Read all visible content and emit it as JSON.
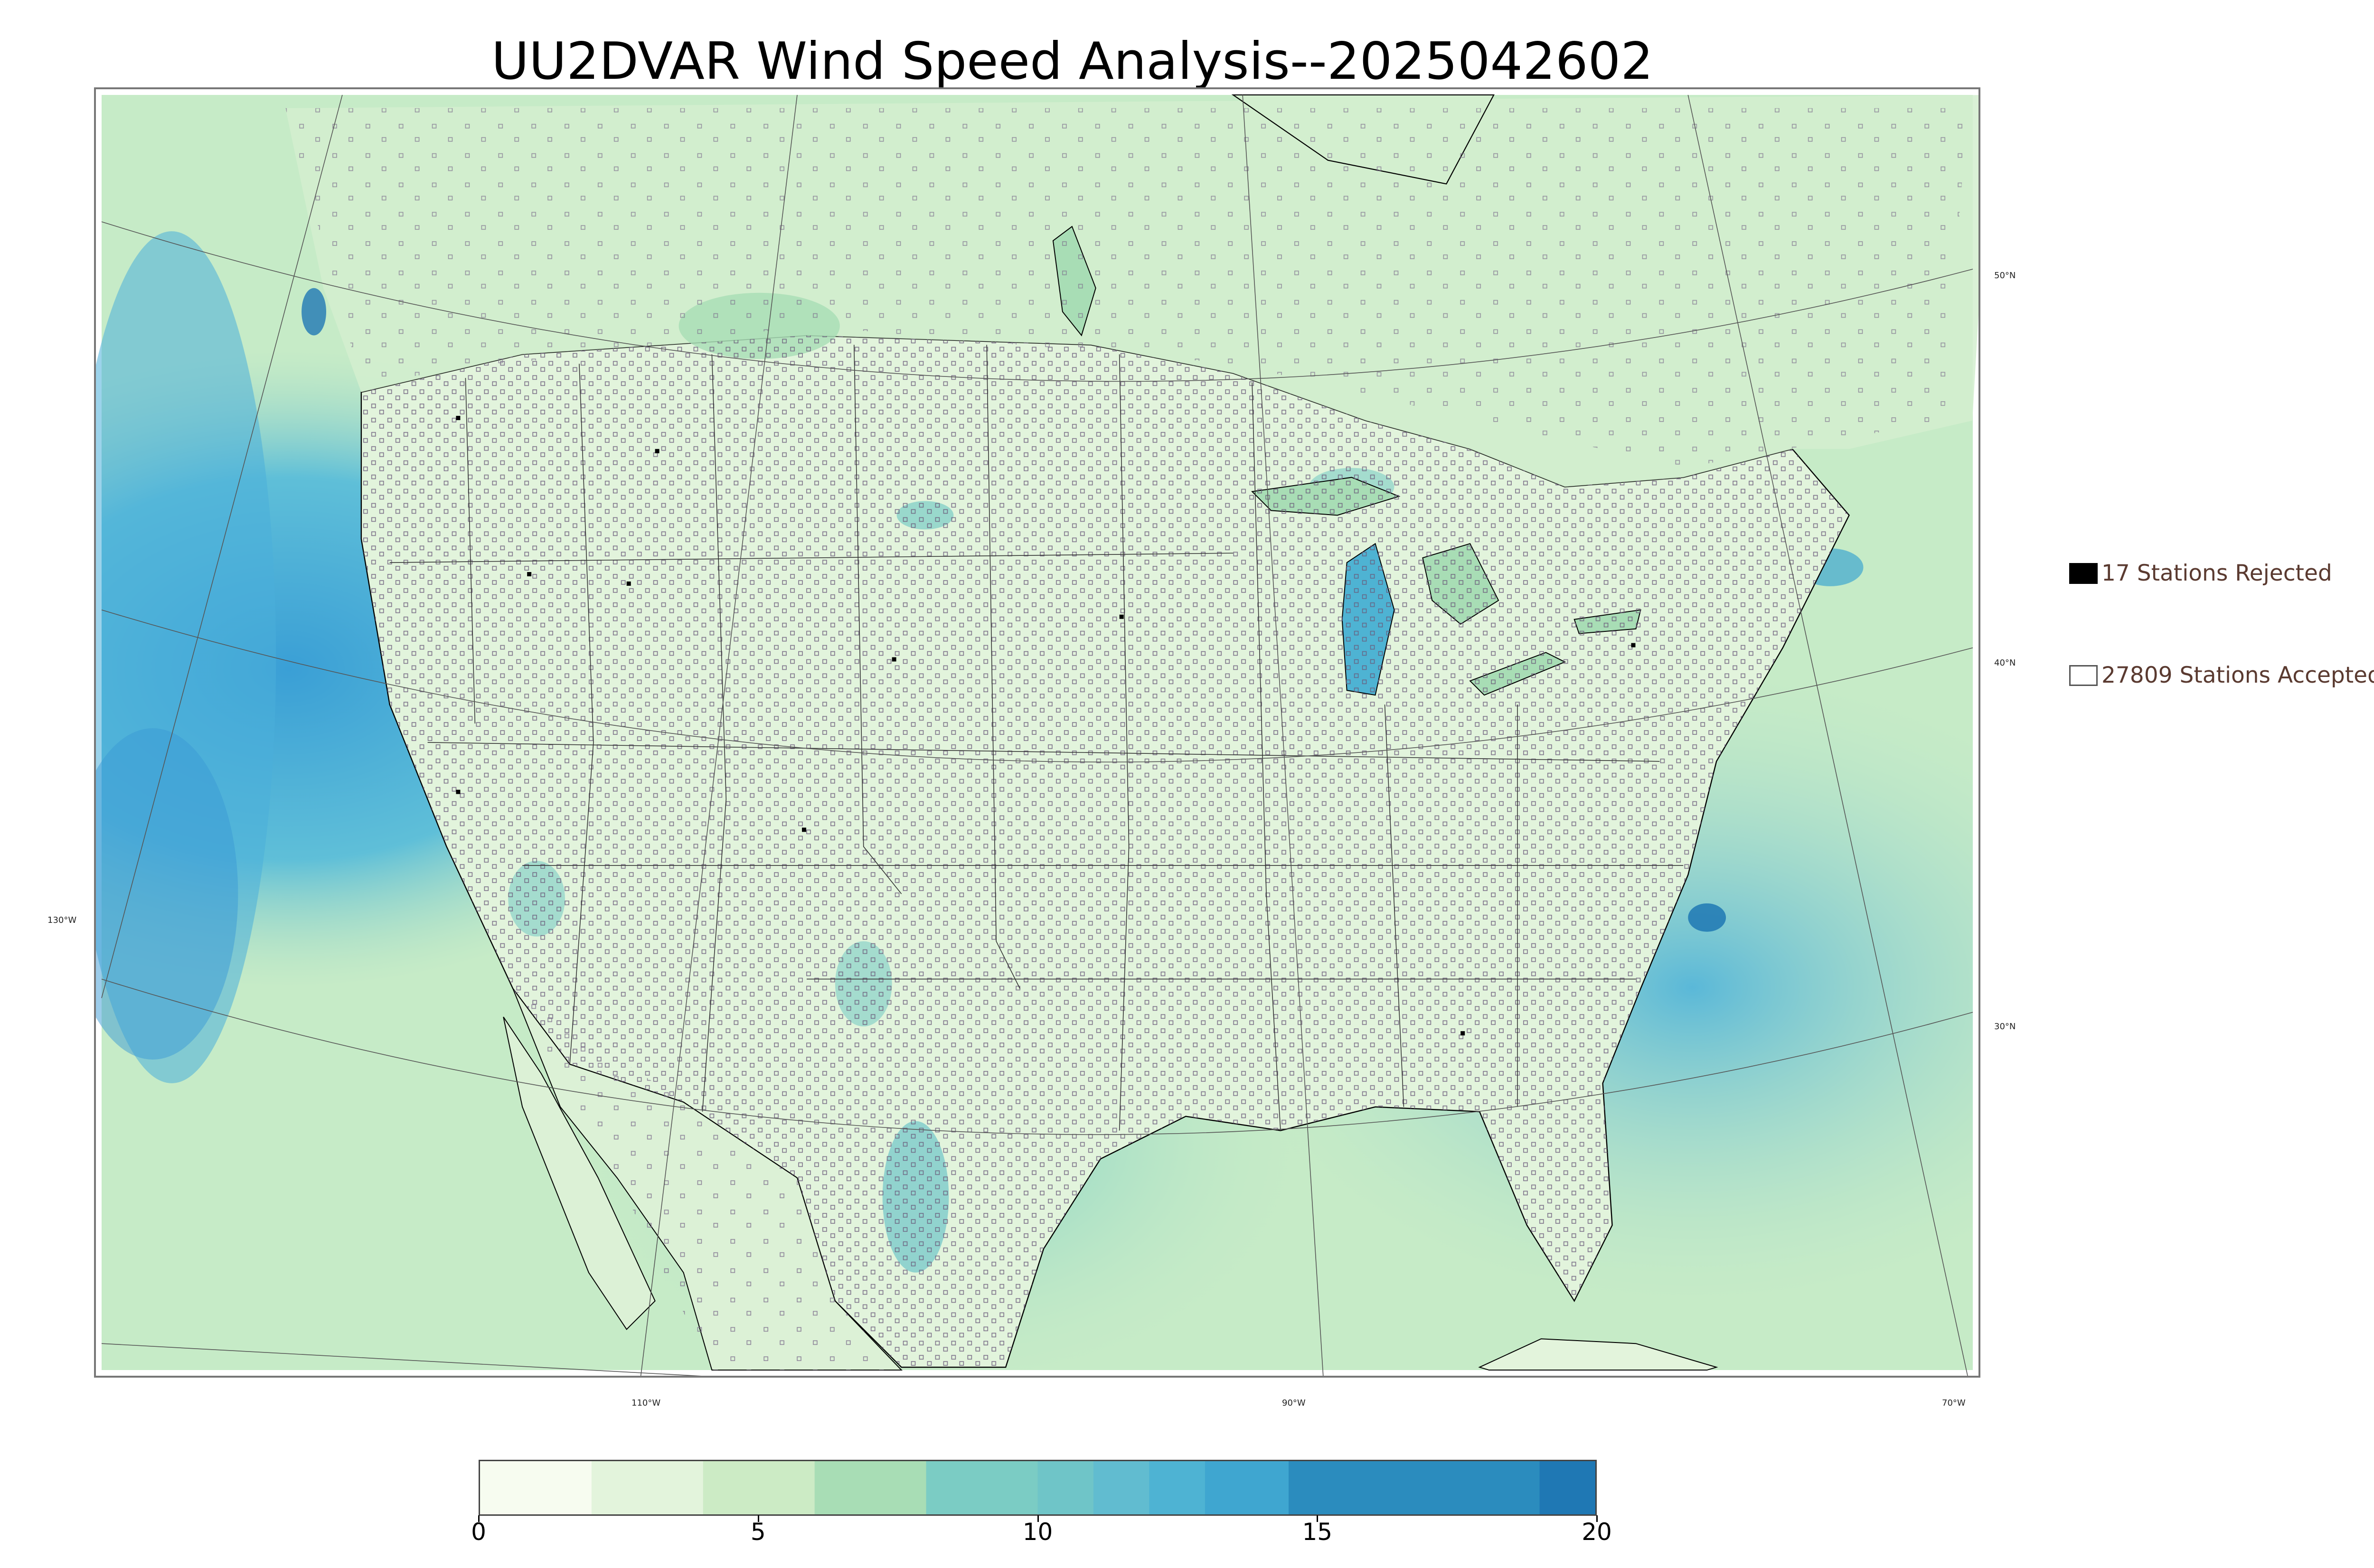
{
  "title": "UU2DVAR Wind Speed Analysis--2025042602",
  "map": {
    "projection": "lambert-conformal",
    "field": "wind speed",
    "lat_labels": [
      "50°N",
      "40°N",
      "30°N"
    ],
    "lon_labels": [
      "130°W",
      "110°W",
      "90°W",
      "70°W"
    ],
    "colors": {
      "calm": "#f3faec",
      "light": "#cfeecb",
      "moderate": "#a9ddb6",
      "strong": "#4eb3d3",
      "very_strong": "#1f78b4",
      "max": "#2f4a60",
      "coastline": "#000000",
      "borders": "#333333",
      "graticule": "#555555"
    }
  },
  "legend": {
    "rejected": {
      "label": "17 Stations Rejected",
      "count": 17,
      "marker_color": "#000000"
    },
    "accepted": {
      "label": "27809 Stations Accepted",
      "count": 27809,
      "marker_color": "#ffffff"
    }
  },
  "colorbar": {
    "min": 0,
    "max": 20,
    "ticks": [
      "0",
      "5",
      "10",
      "15",
      "20"
    ],
    "stops": [
      {
        "value": 0,
        "color": "#f7fcf0"
      },
      {
        "value": 2,
        "color": "#e3f4dc"
      },
      {
        "value": 4,
        "color": "#ccebc5"
      },
      {
        "value": 6,
        "color": "#a8ddb5"
      },
      {
        "value": 8,
        "color": "#7bccc4"
      },
      {
        "value": 10,
        "color": "#6fc5c8"
      },
      {
        "value": 11,
        "color": "#61bcd0"
      },
      {
        "value": 12,
        "color": "#4eb3d3"
      },
      {
        "value": 13,
        "color": "#3fa6d0"
      },
      {
        "value": 14.5,
        "color": "#2b8cbe"
      },
      {
        "value": 19,
        "color": "#1f78b4"
      },
      {
        "value": 20,
        "color": "#33475b"
      }
    ]
  }
}
